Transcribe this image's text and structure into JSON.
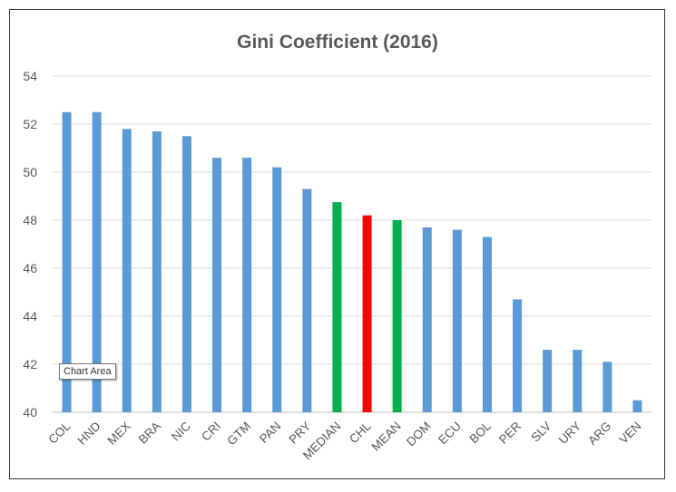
{
  "chart_data": {
    "type": "bar",
    "title": "Gini Coefficient (2016)",
    "xlabel": "",
    "ylabel": "",
    "ylim": [
      40,
      54
    ],
    "yticks": [
      40,
      42,
      44,
      46,
      48,
      50,
      52,
      54
    ],
    "grid": true,
    "categories": [
      "COL",
      "HND",
      "MEX",
      "BRA",
      "NIC",
      "CRI",
      "GTM",
      "PAN",
      "PRY",
      "MEDIAN",
      "CHL",
      "MEAN",
      "DOM",
      "ECU",
      "BOL",
      "PER",
      "SLV",
      "URY",
      "ARG",
      "VEN"
    ],
    "values": [
      52.5,
      52.5,
      51.8,
      51.7,
      51.5,
      50.6,
      50.6,
      50.2,
      49.3,
      48.75,
      48.2,
      48.0,
      47.7,
      47.6,
      47.3,
      44.7,
      42.6,
      42.6,
      42.1,
      40.5
    ],
    "bar_colors": [
      "#5b9bd5",
      "#5b9bd5",
      "#5b9bd5",
      "#5b9bd5",
      "#5b9bd5",
      "#5b9bd5",
      "#5b9bd5",
      "#5b9bd5",
      "#5b9bd5",
      "#00b050",
      "#ff0000",
      "#00b050",
      "#5b9bd5",
      "#5b9bd5",
      "#5b9bd5",
      "#5b9bd5",
      "#5b9bd5",
      "#5b9bd5",
      "#5b9bd5",
      "#5b9bd5"
    ]
  },
  "tooltip": {
    "text": "Chart Area"
  },
  "colors": {
    "default_bar": "#5b9bd5",
    "highlight_green": "#00b050",
    "highlight_red": "#ff0000",
    "gridline": "#d9d9d9",
    "axis": "#bfbfbf",
    "text": "#595959"
  }
}
